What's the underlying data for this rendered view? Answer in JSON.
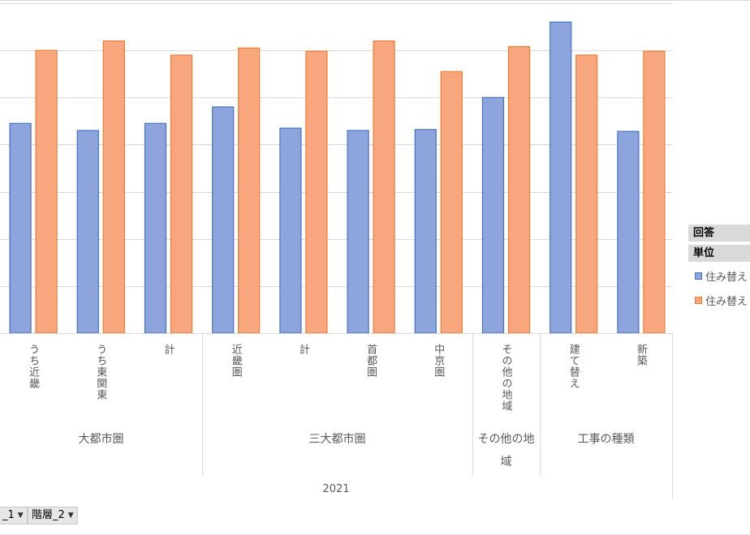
{
  "chart_data": {
    "type": "bar",
    "categories": [
      "うち近畿",
      "うち東関東",
      "計",
      "近畿圏",
      "計",
      "首都圏",
      "中京圏",
      "その他の地域",
      "建て替え",
      "新築"
    ],
    "groups": [
      {
        "label": "大都市圏",
        "categories": [
          "うち近畿",
          "うち東関東",
          "計"
        ]
      },
      {
        "label": "三大都市圏",
        "categories": [
          "近畿圏",
          "計",
          "首都圏",
          "中京圏"
        ]
      },
      {
        "label": "その他の地域",
        "categories": [
          "その他の地域"
        ]
      },
      {
        "label": "工事の種類",
        "categories": [
          "建て替え",
          "新築"
        ]
      }
    ],
    "year": "2021",
    "series": [
      {
        "name": "住み替え",
        "color": "#8ea4dc",
        "values": [
          4.45,
          4.3,
          4.45,
          4.8,
          4.35,
          4.3,
          4.32,
          5.0,
          6.6,
          4.28
        ]
      },
      {
        "name": "住み替え",
        "color": "#f7a67e",
        "values": [
          6.0,
          6.2,
          5.9,
          6.05,
          5.98,
          6.2,
          5.55,
          6.08,
          5.9,
          5.98
        ]
      }
    ],
    "ylim": [
      0,
      7
    ],
    "grid": true,
    "legend_position": "right",
    "title": "",
    "xlabel": "",
    "ylabel": ""
  },
  "legend": {
    "header1": "回答",
    "header2": "単位",
    "items": [
      {
        "label": "住み替え",
        "color": "#8ea4dc",
        "border": "#4472c4"
      },
      {
        "label": "住み替え",
        "color": "#f7a67e",
        "border": "#ed7d31"
      }
    ]
  },
  "filters": {
    "f1": "_1",
    "f2": "階層_2"
  }
}
